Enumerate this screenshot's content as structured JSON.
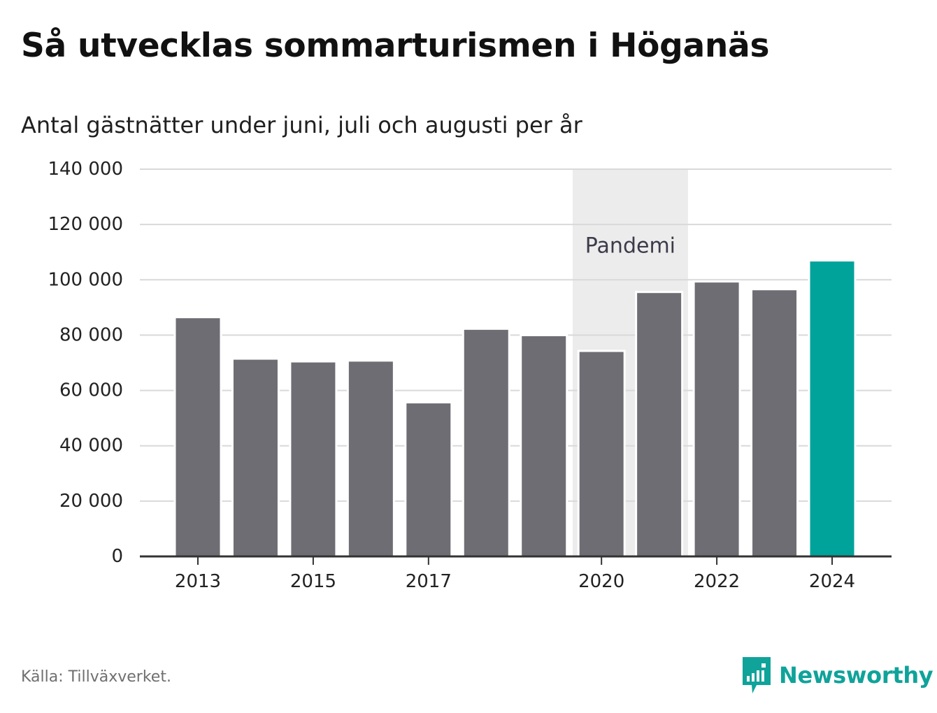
{
  "title": "Så utvecklas sommarturismen i Höganäs",
  "subtitle": "Antal gästnätter under juni, juli och augusti per år",
  "source": "Källa: Tillväxverket.",
  "brand": {
    "name": "Newsworthy",
    "icon": "newsworthy-logo-icon"
  },
  "colors": {
    "bar": "#6e6d73",
    "highlight": "#00a39a",
    "shade": "#ececec",
    "grid": "#d9d9d9",
    "axis": "#333333",
    "brand": "#0fa39a"
  },
  "chart_data": {
    "type": "bar",
    "categories": [
      "2013",
      "2014",
      "2015",
      "2016",
      "2017",
      "2018",
      "2019",
      "2020",
      "2021",
      "2022",
      "2023",
      "2024"
    ],
    "values": [
      86500,
      71500,
      70500,
      70800,
      55700,
      82300,
      80000,
      74300,
      95600,
      99400,
      96600,
      107000
    ],
    "highlight_index": 11,
    "x_tick_labels": [
      "2013",
      "2015",
      "2017",
      "2020",
      "2022",
      "2024"
    ],
    "y_ticks": [
      0,
      20000,
      40000,
      60000,
      80000,
      100000,
      120000,
      140000
    ],
    "y_tick_labels": [
      "0",
      "20 000",
      "40 000",
      "60 000",
      "80 000",
      "100 000",
      "120 000",
      "140 000"
    ],
    "ylim": [
      0,
      140000
    ],
    "grid": true,
    "legend": "none",
    "annotation": {
      "label": "Pandemi",
      "from": "2020",
      "to": "2021"
    }
  }
}
